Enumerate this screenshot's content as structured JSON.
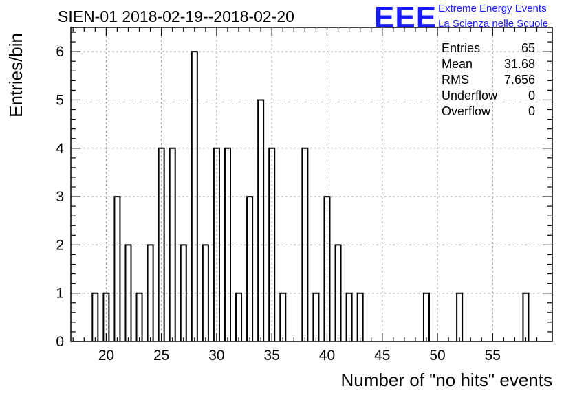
{
  "title": "SIEN-01 2018-02-19--2018-02-20",
  "logo": {
    "mark": "EEE",
    "line1": "Extreme Energy Events",
    "line2": "La Scienza nelle Scuole",
    "color": "#1a1aff"
  },
  "stats": [
    {
      "label": "Entries",
      "value": "65"
    },
    {
      "label": "Mean",
      "value": "31.68"
    },
    {
      "label": "RMS",
      "value": "7.656"
    },
    {
      "label": "Underflow",
      "value": "0"
    },
    {
      "label": "Overflow",
      "value": "0"
    }
  ],
  "chart_data": {
    "type": "bar",
    "title": "SIEN-01 2018-02-19--2018-02-20",
    "xlabel": "Number of \"no hits\" events",
    "ylabel": "Entries/bin",
    "xlim": [
      16.8,
      60.4
    ],
    "ylim": [
      0,
      6.5
    ],
    "x_ticks": [
      20,
      25,
      30,
      35,
      40,
      45,
      50,
      55
    ],
    "y_ticks": [
      0,
      1,
      2,
      3,
      4,
      5,
      6
    ],
    "bin_width": 0.5,
    "grid": true,
    "bins": [
      {
        "x": 19,
        "count": 1
      },
      {
        "x": 20,
        "count": 1
      },
      {
        "x": 21,
        "count": 3
      },
      {
        "x": 22,
        "count": 2
      },
      {
        "x": 23,
        "count": 1
      },
      {
        "x": 24,
        "count": 2
      },
      {
        "x": 25,
        "count": 4
      },
      {
        "x": 26,
        "count": 4
      },
      {
        "x": 27,
        "count": 2
      },
      {
        "x": 28,
        "count": 6
      },
      {
        "x": 29,
        "count": 2
      },
      {
        "x": 30,
        "count": 4
      },
      {
        "x": 31,
        "count": 4
      },
      {
        "x": 32,
        "count": 1
      },
      {
        "x": 33,
        "count": 3
      },
      {
        "x": 34,
        "count": 5
      },
      {
        "x": 35,
        "count": 4
      },
      {
        "x": 36,
        "count": 1
      },
      {
        "x": 38,
        "count": 4
      },
      {
        "x": 39,
        "count": 1
      },
      {
        "x": 40,
        "count": 3
      },
      {
        "x": 41,
        "count": 2
      },
      {
        "x": 42,
        "count": 1
      },
      {
        "x": 43,
        "count": 1
      },
      {
        "x": 49,
        "count": 1
      },
      {
        "x": 52,
        "count": 1
      },
      {
        "x": 58,
        "count": 1
      }
    ]
  }
}
